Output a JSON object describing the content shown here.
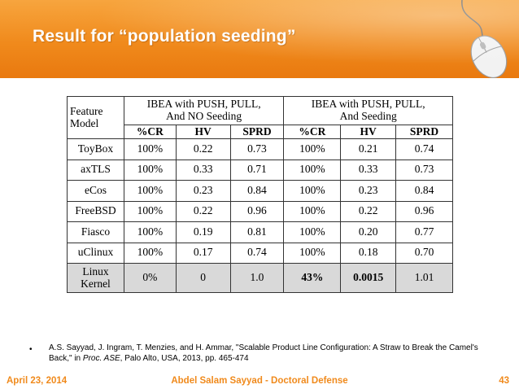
{
  "slide": {
    "title": "Result for “population seeding”",
    "accent_color": "#f08a1c",
    "decoration_icon": "computer-mouse-icon"
  },
  "table": {
    "corner_label_line1": "Feature",
    "corner_label_line2": "Model",
    "group1_line1": "IBEA with PUSH, PULL,",
    "group1_line2": "And NO Seeding",
    "group2_line1": "IBEA with PUSH, PULL,",
    "group2_line2": "And Seeding",
    "columns": [
      "%CR",
      "HV",
      "SPRD",
      "%CR",
      "HV",
      "SPRD"
    ],
    "rows": [
      {
        "model": "ToyBox",
        "values": [
          "100%",
          "0.22",
          "0.73",
          "100%",
          "0.21",
          "0.74"
        ]
      },
      {
        "model": "axTLS",
        "values": [
          "100%",
          "0.33",
          "0.71",
          "100%",
          "0.33",
          "0.73"
        ]
      },
      {
        "model": "eCos",
        "values": [
          "100%",
          "0.23",
          "0.84",
          "100%",
          "0.23",
          "0.84"
        ]
      },
      {
        "model": "FreeBSD",
        "values": [
          "100%",
          "0.22",
          "0.96",
          "100%",
          "0.22",
          "0.96"
        ]
      },
      {
        "model": "Fiasco",
        "values": [
          "100%",
          "0.19",
          "0.81",
          "100%",
          "0.20",
          "0.77"
        ]
      },
      {
        "model": "uClinux",
        "values": [
          "100%",
          "0.17",
          "0.74",
          "100%",
          "0.18",
          "0.70"
        ]
      }
    ],
    "last_row": {
      "model_line1": "Linux",
      "model_line2": "Kernel",
      "values": [
        "0%",
        "0",
        "1.0",
        "43%",
        "0.0015",
        "1.01"
      ]
    }
  },
  "reference": {
    "bullet": "•",
    "before_italic": "A.S. Sayyad, J. Ingram, T. Menzies, and H. Ammar, \"Scalable Product Line Configuration: A Straw to Break the Camel's Back,\" in ",
    "italic": "Proc. ASE",
    "after_italic": ", Palo Alto, USA, 2013, pp. 465-474"
  },
  "footer": {
    "date": "April 23, 2014",
    "center": "Abdel Salam Sayyad - Doctoral Defense",
    "page_number": "43"
  }
}
